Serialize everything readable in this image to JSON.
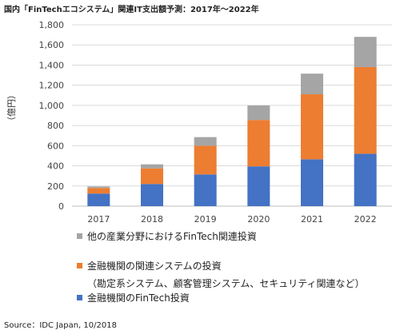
{
  "chart_data": {
    "type": "bar",
    "stacked": true,
    "title": "国内「FinTechエコシステム」関連IT支出額予測：2017年〜2022年",
    "ylabel": "（億円）",
    "ylim": [
      0,
      1800
    ],
    "yticks": [
      "0",
      "200",
      "400",
      "600",
      "800",
      "1,000",
      "1,200",
      "1,400",
      "1,600",
      "1,800"
    ],
    "ytick_values": [
      0,
      200,
      400,
      600,
      800,
      1000,
      1200,
      1400,
      1600,
      1800
    ],
    "grid": true,
    "legend_position": "bottom",
    "categories": [
      "2017",
      "2018",
      "2019",
      "2020",
      "2021",
      "2022"
    ],
    "series": [
      {
        "name": "金融機関のFinTech投資",
        "color": "#4472c4",
        "values": [
          125,
          220,
          315,
          395,
          465,
          520
        ]
      },
      {
        "name": "金融機関の関連システムの投資",
        "name_note": "（勘定系システム、顧客管理システム、セキュリティ関連など）",
        "color": "#ed7d31",
        "values": [
          55,
          155,
          285,
          460,
          645,
          860
        ]
      },
      {
        "name": "他の産業分野におけるFinTech関連投資",
        "color": "#a5a5a5",
        "values": [
          15,
          40,
          85,
          145,
          205,
          300
        ]
      }
    ]
  },
  "source": "Source：IDC Japan, 10/2018"
}
